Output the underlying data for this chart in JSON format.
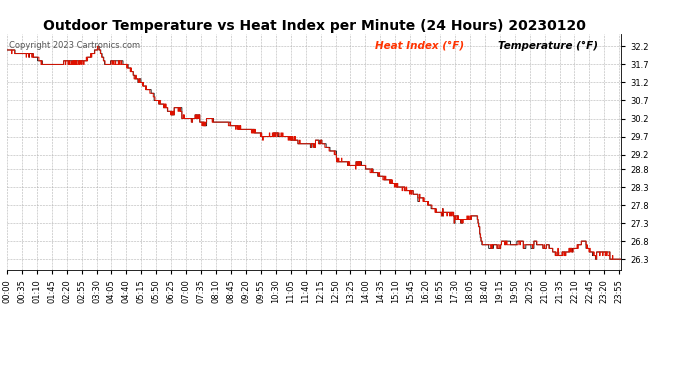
{
  "title": "Outdoor Temperature vs Heat Index per Minute (24 Hours) 20230120",
  "copyright": "Copyright 2023 Cartronics.com",
  "legend_heat_index": "Heat Index (°F)",
  "legend_temperature": "Temperature (°F)",
  "legend_heat_index_color": "#ff3300",
  "legend_temperature_color": "#000000",
  "background_color": "#ffffff",
  "grid_color": "#aaaaaa",
  "line_color_heat": "#dd1100",
  "line_color_temp": "#000000",
  "ymin": 26.0,
  "ymax": 32.55,
  "yticks": [
    26.3,
    26.8,
    27.3,
    27.8,
    28.3,
    28.8,
    29.2,
    29.7,
    30.2,
    30.7,
    31.2,
    31.7,
    32.2
  ],
  "xtick_interval_minutes": 35,
  "total_minutes": 1440,
  "title_fontsize": 10,
  "tick_fontsize": 6,
  "legend_fontsize": 7.5,
  "copyright_fontsize": 6
}
